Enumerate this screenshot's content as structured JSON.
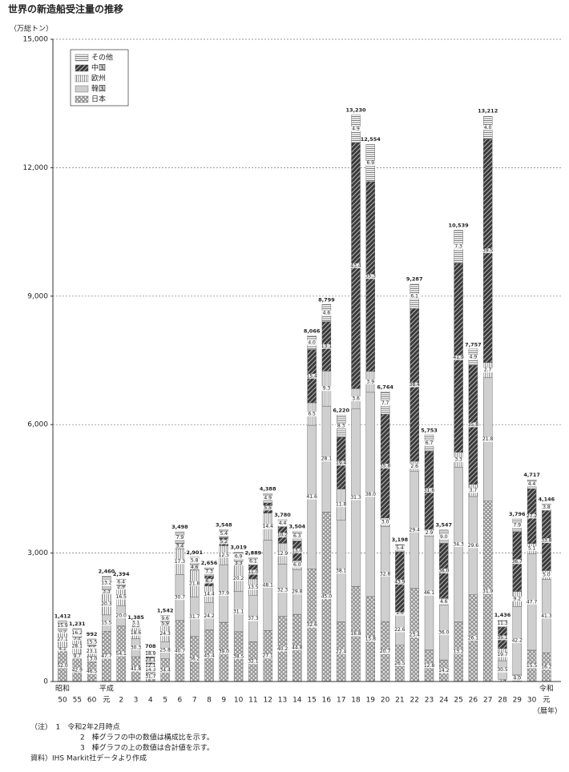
{
  "chart_data": {
    "type": "stacked_bar",
    "title": "世界の新造船受注量の推移",
    "y_label": "（万総トン）",
    "x_label": "（暦年）",
    "categories": [
      [
        "昭和",
        "50"
      ],
      [
        "55"
      ],
      [
        "60"
      ],
      [
        "平成",
        "元"
      ],
      [
        "2"
      ],
      [
        "3"
      ],
      [
        "4"
      ],
      [
        "5"
      ],
      [
        "6"
      ],
      [
        "7"
      ],
      [
        "8"
      ],
      [
        "9"
      ],
      [
        "10"
      ],
      [
        "11"
      ],
      [
        "12"
      ],
      [
        "13"
      ],
      [
        "14"
      ],
      [
        "15"
      ],
      [
        "16"
      ],
      [
        "17"
      ],
      [
        "18"
      ],
      [
        "19"
      ],
      [
        "20"
      ],
      [
        "21"
      ],
      [
        "22"
      ],
      [
        "23"
      ],
      [
        "24"
      ],
      [
        "25"
      ],
      [
        "26"
      ],
      [
        "27"
      ],
      [
        "28"
      ],
      [
        "29"
      ],
      [
        "30"
      ],
      [
        "令和",
        "元"
      ]
    ],
    "totals": {
      "values": [
        1412,
        1231,
        992,
        2460,
        2394,
        1385,
        708,
        1542,
        3498,
        2901,
        2656,
        3548,
        3019,
        2889,
        4388,
        3780,
        3504,
        8066,
        8799,
        6220,
        13230,
        12554,
        6764,
        3198,
        9287,
        5753,
        3547,
        10539,
        7757,
        13212,
        1436,
        3796,
        4717,
        4146
      ],
      "value_labels": [
        "1,412",
        "1,231",
        "992",
        "2,460",
        "2,394",
        "1,385",
        "708",
        "1,542",
        "3,498",
        "2,901",
        "2,656",
        "3,548",
        "3,019",
        "2,889",
        "4,388",
        "3,780",
        "3,504",
        "8,066",
        "8,799",
        "6,220",
        "13,230",
        "12,554",
        "6,764",
        "3,198",
        "9,287",
        "5,753",
        "3,547",
        "10,539",
        "7,757",
        "13,212",
        "1,436",
        "3,796",
        "4,717",
        "4,146"
      ]
    },
    "series": [
      {
        "name": "日本",
        "pattern": "dots",
        "color": "#9a9a9a",
        "values": [
          52.0,
          42.9,
          46.5,
          47.7,
          54.1,
          41.8,
          31.7,
          34.4,
          40.7,
          36.2,
          45.4,
          39.0,
          38.5,
          32.1,
          27.1,
          40.2,
          44.8,
          32.6,
          45.0,
          22.4,
          16.8,
          15.8,
          20.7,
          26.5,
          23.4,
          12.8,
          14.2,
          13.2,
          26.1,
          31.9,
          3.4,
          4.0,
          15.5,
          16.2
        ],
        "value_labels": [
          "52.0",
          "42.9",
          "46.5",
          "47.7",
          "54.1",
          "41.8",
          "31.7",
          "34.4",
          "40.7",
          "36.2",
          "45.4",
          "39.0",
          "38.5",
          "32.1",
          "27.1",
          "40.2",
          "44.8",
          "32.6",
          "45.0",
          "22.4",
          "16.8",
          "15.8",
          "20.7",
          "26.5",
          "23.4",
          "12.8",
          "14.2",
          "13.2",
          "26.1",
          "31.9",
          "3.4",
          "4.0",
          "15.5",
          "16.2"
        ]
      },
      {
        "name": "韓国",
        "pattern": "solid",
        "color": "#cfcfcf",
        "values": [
          4.2,
          9.7,
          13.0,
          15.5,
          20.0,
          30.3,
          14.3,
          25.8,
          30.7,
          31.7,
          24.2,
          37.9,
          31.1,
          37.3,
          48.1,
          32.3,
          29.8,
          41.6,
          28.1,
          38.1,
          31.3,
          38.0,
          32.8,
          22.6,
          29.4,
          46.1,
          36.0,
          34.3,
          29.6,
          21.8,
          30.5,
          42.2,
          47.7,
          41.3
        ],
        "value_labels": [
          "4.2",
          "9.7",
          "13.0",
          "15.5",
          "20.0",
          "30.3",
          "14.3",
          "25.8",
          "30.7",
          "31.7",
          "24.2",
          "37.9",
          "31.1",
          "37.3",
          "48.1",
          "32.3",
          "29.8",
          "41.6",
          "28.1",
          "38.1",
          "31.3",
          "38.0",
          "32.8",
          "22.6",
          "29.4",
          "46.1",
          "36.0",
          "34.3",
          "29.6",
          "21.8",
          "30.5",
          "42.2",
          "47.7",
          "41.3"
        ]
      },
      {
        "name": "欧州",
        "pattern": "vlines",
        "color": "#8a8a8a",
        "values": [
          27.1,
          28.1,
          23.1,
          20.3,
          16.5,
          18.6,
          12.1,
          24.3,
          17.3,
          21.8,
          14.4,
          12.5,
          20.2,
          13.5,
          14.4,
          12.9,
          6.0,
          6.5,
          9.3,
          11.8,
          3.6,
          3.9,
          3.0,
          1.6,
          2.6,
          2.9,
          4.6,
          3.3,
          3.7,
          2.7,
          19.7,
          9.2,
          5.1,
          5.0
        ],
        "value_labels": [
          "27.1",
          "28.1",
          "23.1",
          "20.3",
          "16.5",
          "18.6",
          "12.1",
          "24.3",
          "17.3",
          "21.8",
          "14.4",
          "12.5",
          "20.2",
          "13.5",
          "14.4",
          "12.9",
          "6.0",
          "6.5",
          "9.3",
          "11.8",
          "3.6",
          "3.9",
          "3.0",
          "1.6",
          "2.6",
          "2.9",
          "4.6",
          "3.3",
          "3.7",
          "2.7",
          "19.7",
          "9.2",
          "5.1",
          "5.0"
        ]
      },
      {
        "name": "中国",
        "pattern": "diag",
        "color": "#3a3a3a",
        "values": [
          0.9,
          3.2,
          1.9,
          3.3,
          2.9,
          6.3,
          23.1,
          5.9,
          3.4,
          4.6,
          8.7,
          5.2,
          3.3,
          11.0,
          5.5,
          10.2,
          13.0,
          15.4,
          13.1,
          19.4,
          43.4,
          35.3,
          35.8,
          43.9,
          38.4,
          31.6,
          36.0,
          41.9,
          35.8,
          39.5,
          35.1,
          36.7,
          27.2,
          33.8
        ],
        "value_labels": [
          "0.9",
          "3.2",
          "1.9",
          "3.3",
          "2.9",
          "6.3",
          "23.1",
          "5.9",
          "3.4",
          "4.6",
          "8.7",
          "5.2",
          "3.3",
          "11.0",
          "5.5",
          "10.2",
          "13.0",
          "15.4",
          "13.1",
          "19.4",
          "43.4",
          "35.3",
          "35.8",
          "43.9",
          "38.4",
          "31.6",
          "36.0",
          "41.9",
          "35.8",
          "39.5",
          "35.1",
          "36.7",
          "27.2",
          "33.8"
        ]
      },
      {
        "name": "その他",
        "pattern": "hlines",
        "color": "#777777",
        "values": [
          15.9,
          16.2,
          15.5,
          13.2,
          6.4,
          3.1,
          18.9,
          9.6,
          7.9,
          5.8,
          7.3,
          5.4,
          6.9,
          6.1,
          4.9,
          4.4,
          6.3,
          4.0,
          4.6,
          8.3,
          4.9,
          6.9,
          7.7,
          5.4,
          6.1,
          6.7,
          9.0,
          7.3,
          4.9,
          4.0,
          11.3,
          7.9,
          4.4,
          3.8
        ],
        "value_labels": [
          "15.9",
          "16.2",
          "15.5",
          "13.2",
          "6.4",
          "3.1",
          "18.9",
          "9.6",
          "7.9",
          "5.8",
          "7.3",
          "5.4",
          "6.9",
          "6.1",
          "4.9",
          "4.4",
          "6.3",
          "4.0",
          "4.6",
          "8.3",
          "4.9",
          "6.9",
          "7.7",
          "5.4",
          "6.1",
          "6.7",
          "9.0",
          "7.3",
          "4.9",
          "4.0",
          "11.3",
          "7.9",
          "4.4",
          "3.8"
        ]
      }
    ],
    "ylim": [
      0,
      15000
    ],
    "yticks": [
      0,
      {
        "value": 3000,
        "label": "3,000"
      },
      {
        "value": 6000,
        "label": "6,000"
      },
      {
        "value": 9000,
        "label": "9,000"
      },
      {
        "value": 12000,
        "label": "12,000"
      },
      {
        "value": 15000,
        "label": "15,000"
      }
    ],
    "grid": true,
    "legend": "upper left"
  },
  "notes": [
    "（注）　1　令和2年2月時点",
    "2　棒グラフの中の数値は構成比を示す。",
    "3　棒グラフの上の数値は合計値を示す。",
    "資料）IHS Markit社データより作成"
  ]
}
